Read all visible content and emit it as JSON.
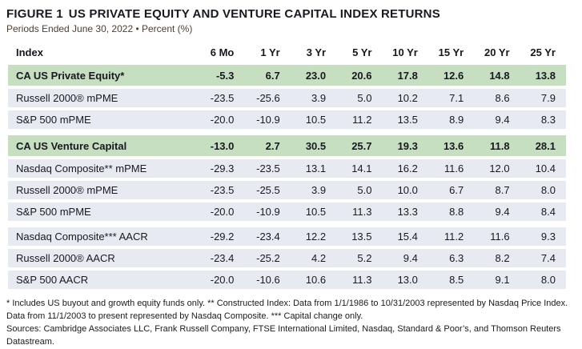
{
  "figure": {
    "title_label": "FIGURE 1",
    "title_text": "US PRIVATE EQUITY AND VENTURE CAPITAL INDEX RETURNS",
    "subtitle": "Periods Ended June 30, 2022 • Percent (%)"
  },
  "table": {
    "headers": [
      "Index",
      "6 Mo",
      "1 Yr",
      "3 Yr",
      "5 Yr",
      "10 Yr",
      "15 Yr",
      "20 Yr",
      "25 Yr"
    ],
    "rows": [
      {
        "label": "CA US Private Equity*",
        "values": [
          "-5.3",
          "6.7",
          "23.0",
          "20.6",
          "17.8",
          "12.6",
          "14.8",
          "13.8"
        ],
        "highlight": true,
        "section_start": false
      },
      {
        "label": "Russell 2000® mPME",
        "values": [
          "-23.5",
          "-25.6",
          "3.9",
          "5.0",
          "10.2",
          "7.1",
          "8.6",
          "7.9"
        ],
        "highlight": false,
        "section_start": false
      },
      {
        "label": "S&P 500 mPME",
        "values": [
          "-20.0",
          "-10.9",
          "10.5",
          "11.2",
          "13.5",
          "8.9",
          "9.4",
          "8.3"
        ],
        "highlight": false,
        "section_start": false
      },
      {
        "label": "CA US Venture Capital",
        "values": [
          "-13.0",
          "2.7",
          "30.5",
          "25.7",
          "19.3",
          "13.6",
          "11.8",
          "28.1"
        ],
        "highlight": true,
        "section_start": true
      },
      {
        "label": "Nasdaq Composite** mPME",
        "values": [
          "-29.3",
          "-23.5",
          "13.1",
          "14.1",
          "16.2",
          "11.6",
          "12.0",
          "10.4"
        ],
        "highlight": false,
        "section_start": false
      },
      {
        "label": "Russell 2000® mPME",
        "values": [
          "-23.5",
          "-25.5",
          "3.9",
          "5.0",
          "10.0",
          "6.7",
          "8.7",
          "8.0"
        ],
        "highlight": false,
        "section_start": false
      },
      {
        "label": "S&P 500 mPME",
        "values": [
          "-20.0",
          "-10.9",
          "10.5",
          "11.3",
          "13.3",
          "8.8",
          "9.4",
          "8.4"
        ],
        "highlight": false,
        "section_start": false
      },
      {
        "label": "Nasdaq Composite*** AACR",
        "values": [
          "-29.2",
          "-23.4",
          "12.2",
          "13.5",
          "15.4",
          "11.2",
          "11.6",
          "9.3"
        ],
        "highlight": false,
        "section_start": true
      },
      {
        "label": "Russell 2000® AACR",
        "values": [
          "-23.4",
          "-25.2",
          "4.2",
          "5.2",
          "9.4",
          "6.3",
          "8.2",
          "7.4"
        ],
        "highlight": false,
        "section_start": false
      },
      {
        "label": "S&P 500 AACR",
        "values": [
          "-20.0",
          "-10.6",
          "10.6",
          "11.3",
          "13.0",
          "8.5",
          "9.1",
          "8.0"
        ],
        "highlight": false,
        "section_start": false
      }
    ]
  },
  "footnotes": {
    "notes": "* Includes US buyout and growth equity funds only. ** Constructed Index: Data from 1/1/1986 to 10/31/2003 represented by Nasdaq Price Index. Data from 11/1/2003 to present represented by Nasdaq Composite. *** Capital change only.",
    "sources": "Sources: Cambridge Associates LLC, Frank Russell Company, FTSE International Limited, Nasdaq, Standard & Poor’s, and Thomson Reuters Datastream."
  },
  "colors": {
    "highlight_row_bg": "#c5dfc0",
    "data_row_bg": "#e7eaf1",
    "title_color": "#191921",
    "subtitle_color": "#4e3e34"
  },
  "chart_data": {
    "type": "table",
    "title": "FIGURE 1 US PRIVATE EQUITY AND VENTURE CAPITAL INDEX RETURNS",
    "subtitle": "Periods Ended June 30, 2022 • Percent (%)",
    "columns": [
      "Index",
      "6 Mo",
      "1 Yr",
      "3 Yr",
      "5 Yr",
      "10 Yr",
      "15 Yr",
      "20 Yr",
      "25 Yr"
    ],
    "rows": [
      [
        "CA US Private Equity*",
        -5.3,
        6.7,
        23.0,
        20.6,
        17.8,
        12.6,
        14.8,
        13.8
      ],
      [
        "Russell 2000® mPME",
        -23.5,
        -25.6,
        3.9,
        5.0,
        10.2,
        7.1,
        8.6,
        7.9
      ],
      [
        "S&P 500 mPME",
        -20.0,
        -10.9,
        10.5,
        11.2,
        13.5,
        8.9,
        9.4,
        8.3
      ],
      [
        "CA US Venture Capital",
        -13.0,
        2.7,
        30.5,
        25.7,
        19.3,
        13.6,
        11.8,
        28.1
      ],
      [
        "Nasdaq Composite** mPME",
        -29.3,
        -23.5,
        13.1,
        14.1,
        16.2,
        11.6,
        12.0,
        10.4
      ],
      [
        "Russell 2000® mPME",
        -23.5,
        -25.5,
        3.9,
        5.0,
        10.0,
        6.7,
        8.7,
        8.0
      ],
      [
        "S&P 500 mPME",
        -20.0,
        -10.9,
        10.5,
        11.3,
        13.3,
        8.8,
        9.4,
        8.4
      ],
      [
        "Nasdaq Composite*** AACR",
        -29.2,
        -23.4,
        12.2,
        13.5,
        15.4,
        11.2,
        11.6,
        9.3
      ],
      [
        "Russell 2000® AACR",
        -23.4,
        -25.2,
        4.2,
        5.2,
        9.4,
        6.3,
        8.2,
        7.4
      ],
      [
        "S&P 500 AACR",
        -20.0,
        -10.6,
        10.6,
        11.3,
        13.0,
        8.5,
        9.1,
        8.0
      ]
    ],
    "highlighted_rows": [
      "CA US Private Equity*",
      "CA US Venture Capital"
    ],
    "units": "percent"
  }
}
